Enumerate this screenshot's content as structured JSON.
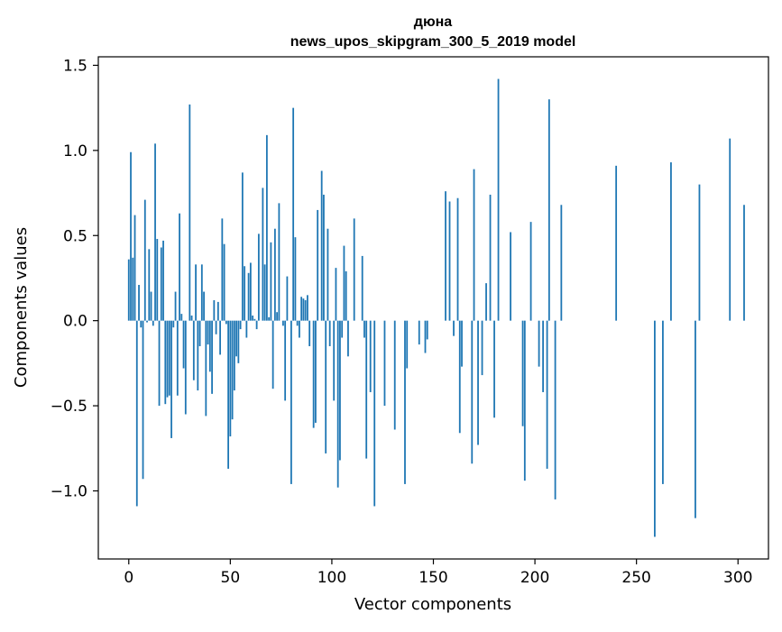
{
  "chart_data": {
    "type": "bar",
    "title": "дюна",
    "subtitle": "news_upos_skipgram_300_5_2019 model",
    "xlabel": "Vector components",
    "ylabel": "Components values",
    "xlim": [
      -15,
      315
    ],
    "ylim": [
      -1.4,
      1.55
    ],
    "xticks": [
      0,
      50,
      100,
      150,
      200,
      250,
      300
    ],
    "xtick_labels": [
      "0",
      "50",
      "100",
      "150",
      "200",
      "250",
      "300"
    ],
    "yticks": [
      -1.0,
      -0.5,
      0.0,
      0.5,
      1.0,
      1.5
    ],
    "ytick_labels": [
      "−1.0",
      "−0.5",
      "0.0",
      "0.5",
      "1.0",
      "1.5"
    ],
    "grid": false,
    "bar_color": "#1f77b4",
    "values": [
      0.36,
      0.99,
      0.37,
      0.62,
      -1.09,
      0.21,
      -0.04,
      -0.93,
      0.71,
      -0.01,
      0.42,
      0.17,
      -0.03,
      1.04,
      0.48,
      -0.5,
      0.43,
      0.47,
      -0.49,
      -0.45,
      -0.44,
      -0.69,
      -0.04,
      0.17,
      -0.44,
      0.63,
      0.04,
      -0.28,
      -0.55,
      0.0,
      1.27,
      0.03,
      -0.35,
      0.33,
      -0.41,
      -0.15,
      0.33,
      0.17,
      -0.56,
      -0.14,
      -0.3,
      -0.43,
      0.12,
      -0.08,
      0.11,
      -0.2,
      0.6,
      0.45,
      -0.02,
      -0.87,
      -0.68,
      -0.58,
      -0.41,
      -0.21,
      -0.25,
      -0.05,
      0.87,
      0.32,
      -0.1,
      0.28,
      0.34,
      0.03,
      0.01,
      -0.05,
      0.51,
      0.0,
      0.78,
      0.33,
      1.09,
      0.02,
      0.46,
      -0.4,
      0.54,
      0.05,
      0.69,
      0.0,
      -0.03,
      -0.47,
      0.26,
      0.0,
      -0.96,
      1.25,
      0.49,
      -0.03,
      -0.1,
      0.14,
      0.13,
      0.12,
      0.15,
      -0.15,
      0.0,
      -0.63,
      -0.6,
      0.65,
      0.0,
      0.88,
      0.74,
      -0.78,
      0.54,
      -0.15,
      0.0,
      -0.47,
      0.31,
      -0.98,
      -0.82,
      -0.1,
      0.44,
      0.29,
      -0.21,
      0.0,
      0.0,
      0.6,
      0.0,
      0.0,
      0.0,
      0.38,
      -0.1,
      -0.81,
      0.0,
      -0.42,
      0.0,
      -1.09,
      0.0,
      0.0,
      0.0,
      0.0,
      -0.5,
      0.0,
      0.0,
      0.0,
      0.0,
      -0.64,
      0.0,
      0.0,
      0.0,
      0.0,
      -0.96,
      -0.28,
      0.0,
      0.0,
      0.0,
      0.0,
      0.0,
      -0.14,
      0.0,
      0.0,
      -0.19,
      -0.11,
      0.0,
      0.0,
      0.0,
      0.0,
      0.0,
      0.0,
      0.0,
      0.0,
      0.76,
      0.0,
      0.7,
      0.0,
      -0.09,
      0.0,
      0.72,
      -0.66,
      -0.27,
      0.0,
      0.0,
      0.0,
      0.0,
      -0.84,
      0.89,
      0.0,
      -0.73,
      0.0,
      -0.32,
      0.0,
      0.22,
      0.0,
      0.74,
      0.0,
      -0.57,
      0.0,
      1.42,
      0.0,
      0.0,
      0.0,
      0.0,
      0.0,
      0.52,
      0.0,
      0.0,
      0.0,
      0.0,
      0.0,
      -0.62,
      -0.94,
      0.0,
      0.0,
      0.58,
      0.0,
      0.0,
      0.0,
      -0.27,
      0.0,
      -0.42,
      0.0,
      -0.87,
      1.3,
      0.0,
      0.0,
      -1.05,
      0.0,
      0.0,
      0.68,
      0.0,
      0.0,
      0.0,
      0.0,
      0.0,
      0.0,
      0.0,
      0.0,
      0.0,
      0.0,
      0.0,
      0.0,
      0.0,
      0.0,
      0.0,
      0.0,
      0.0,
      0.0,
      0.0,
      0.0,
      0.0,
      0.0,
      0.0,
      0.0,
      0.0,
      0.0,
      0.91,
      0.0,
      0.0,
      0.0,
      0.0,
      0.0,
      0.0,
      0.0,
      0.0,
      0.0,
      0.0,
      0.0,
      0.0,
      0.0,
      0.0,
      0.0,
      0.0,
      0.0,
      0.0,
      -1.27,
      0.0,
      0.0,
      0.0,
      -0.96,
      0.0,
      0.0,
      0.0,
      0.93,
      0.0,
      0.0,
      0.0,
      0.0,
      0.0,
      0.0,
      0.0,
      0.0,
      0.0,
      0.0,
      0.0,
      -1.16,
      0.0,
      0.8,
      0.0,
      0.0,
      0.0,
      0.0,
      0.0,
      0.0,
      0.0,
      0.0,
      0.0,
      0.0,
      0.0,
      0.0,
      0.0,
      0.0,
      1.07,
      0.0,
      0.0,
      0.0,
      0.0,
      0.0,
      0.0,
      0.68
    ]
  }
}
